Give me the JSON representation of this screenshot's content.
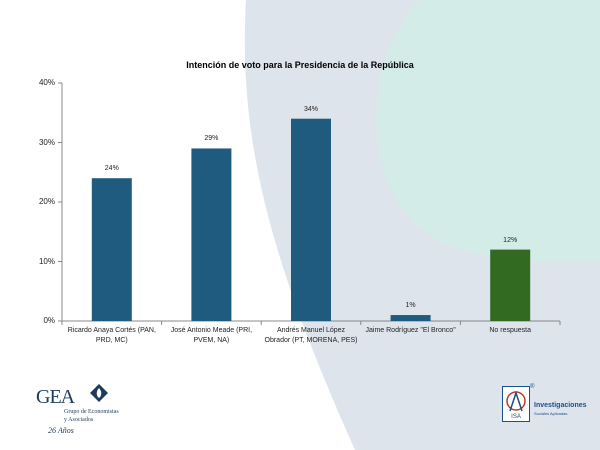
{
  "chart_data": {
    "type": "bar",
    "title": "Intención de voto para la Presidencia de la República",
    "categories": [
      [
        "Ricardo Anaya Cortés (PAN,",
        "PRD, MC)"
      ],
      [
        "José Antonio Meade (PRI,",
        "PVEM, NA)"
      ],
      [
        "Andrés Manuel López",
        "Obrador (PT, MORENA, PES)"
      ],
      [
        "Jaime Rodríguez \"El Bronco\""
      ],
      [
        "No respuesta"
      ]
    ],
    "values": [
      24,
      29,
      34,
      1,
      12
    ],
    "data_labels": [
      "24%",
      "29%",
      "34%",
      "1%",
      "12%"
    ],
    "bar_colors": [
      "#1f5b7e",
      "#1f5b7e",
      "#1f5b7e",
      "#1f5b7e",
      "#336a22"
    ],
    "ylim": [
      0,
      40
    ],
    "yticks": [
      0,
      10,
      20,
      30,
      40
    ],
    "ytick_labels": [
      "0%",
      "10%",
      "20%",
      "30%",
      "40%"
    ],
    "grid": false
  },
  "logos": {
    "gea": {
      "name": "GEA",
      "subtitle": [
        "Grupo de Economistas",
        "y Asociados"
      ],
      "years": "26 Años"
    },
    "isa": {
      "mark": "ISA",
      "name": "Investigaciones",
      "subtitle": "Sociales Aplicadas",
      "registered": "®"
    }
  },
  "colors": {
    "background_gray": "#dde4ec",
    "background_teal": "#d3ece7",
    "axis": "#888888"
  }
}
